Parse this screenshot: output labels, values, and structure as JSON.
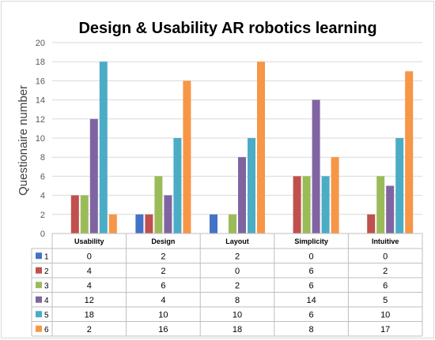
{
  "chart_data": {
    "type": "bar",
    "title": "Design & Usability AR robotics learning",
    "ylabel": "Questionaire number",
    "xlabel": "",
    "ylim": [
      0,
      20
    ],
    "yticks": [
      0,
      2,
      4,
      6,
      8,
      10,
      12,
      14,
      16,
      18,
      20
    ],
    "grid": true,
    "legend_placement": "data-table-left",
    "categories": [
      "Usability",
      "Design",
      "Layout",
      "Simplicity",
      "Intuitive"
    ],
    "series": [
      {
        "name": "1",
        "color": "#4472c4",
        "values": [
          0,
          2,
          2,
          0,
          0
        ]
      },
      {
        "name": "2",
        "color": "#c0504d",
        "values": [
          4,
          2,
          0,
          6,
          2
        ]
      },
      {
        "name": "3",
        "color": "#9bbb59",
        "values": [
          4,
          6,
          2,
          6,
          6
        ]
      },
      {
        "name": "4",
        "color": "#8064a2",
        "values": [
          12,
          4,
          8,
          14,
          5
        ]
      },
      {
        "name": "5",
        "color": "#4bacc6",
        "values": [
          18,
          10,
          10,
          6,
          10
        ]
      },
      {
        "name": "6",
        "color": "#f79646",
        "values": [
          2,
          16,
          18,
          8,
          17
        ]
      }
    ]
  }
}
